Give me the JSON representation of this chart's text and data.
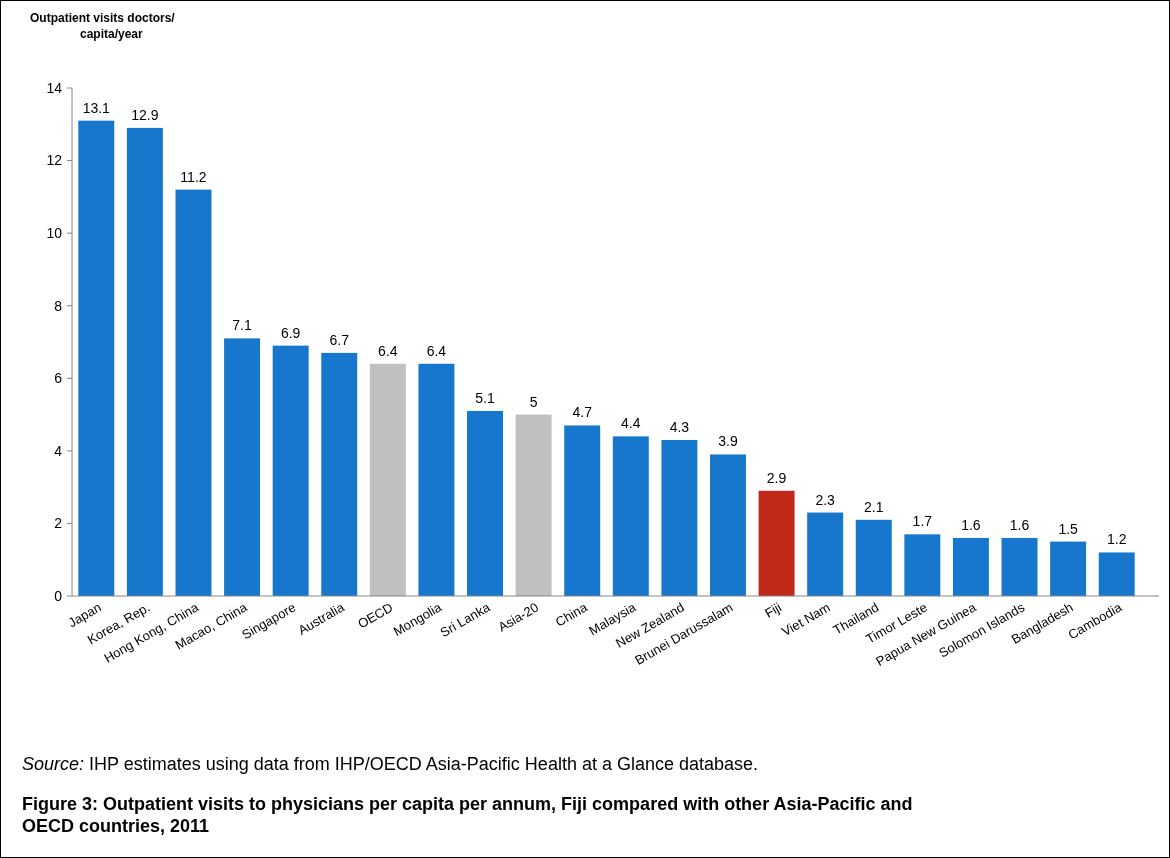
{
  "chart_data": {
    "type": "bar",
    "title": "Figure 3: Outpatient visits to physicians per capita per annum, Fiji compared with other Asia-Pacific and OECD countries, 2011",
    "ylabel": "Outpatient visits doctors/ capita/year",
    "annotations": [
      "Source: IHP estimates using data from IHP/OECD Asia-Pacific Health at a Glance database."
    ],
    "categories": [
      "Japan",
      "Korea, Rep.",
      "Hong Kong, China",
      "Macao, China",
      "Singapore",
      "Australia",
      "OECD",
      "Mongolia",
      "Sri Lanka",
      "Asia-20",
      "China",
      "Malaysia",
      "New Zealand",
      "Brunei Darussalam",
      "Fiji",
      "Viet Nam",
      "Thailand",
      "Timor Leste",
      "Papua New Guinea",
      "Solomon Islands",
      "Bangladesh",
      "Cambodia"
    ],
    "values": [
      13.1,
      12.9,
      11.2,
      7.1,
      6.9,
      6.7,
      6.4,
      6.4,
      5.1,
      5,
      4.7,
      4.4,
      4.3,
      3.9,
      2.9,
      2.3,
      2.1,
      1.7,
      1.6,
      1.6,
      1.5,
      1.2
    ],
    "colors": [
      "#1777cc",
      "#1777cc",
      "#1777cc",
      "#1777cc",
      "#1777cc",
      "#1777cc",
      "#c0c0c0",
      "#1777cc",
      "#1777cc",
      "#c0c0c0",
      "#1777cc",
      "#1777cc",
      "#1777cc",
      "#1777cc",
      "#c0291a",
      "#1777cc",
      "#1777cc",
      "#1777cc",
      "#1777cc",
      "#1777cc",
      "#1777cc",
      "#1777cc"
    ],
    "ylim": [
      0,
      14
    ],
    "yticks": [
      0,
      2,
      4,
      6,
      8,
      10,
      12,
      14
    ],
    "grid": false,
    "data_labels": true
  }
}
